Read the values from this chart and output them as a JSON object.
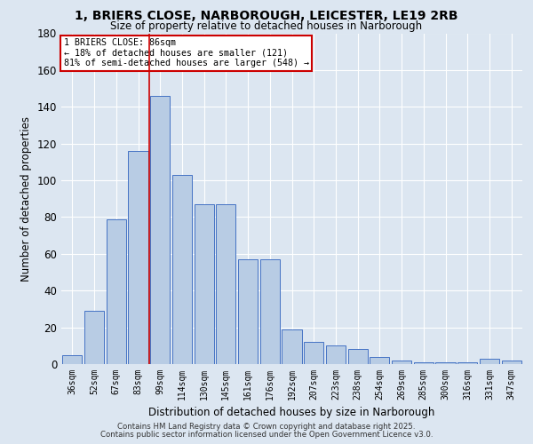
{
  "title": "1, BRIERS CLOSE, NARBOROUGH, LEICESTER, LE19 2RB",
  "subtitle": "Size of property relative to detached houses in Narborough",
  "xlabel": "Distribution of detached houses by size in Narborough",
  "ylabel": "Number of detached properties",
  "categories": [
    "36sqm",
    "52sqm",
    "67sqm",
    "83sqm",
    "99sqm",
    "114sqm",
    "130sqm",
    "145sqm",
    "161sqm",
    "176sqm",
    "192sqm",
    "207sqm",
    "223sqm",
    "238sqm",
    "254sqm",
    "269sqm",
    "285sqm",
    "300sqm",
    "316sqm",
    "331sqm",
    "347sqm"
  ],
  "values": [
    5,
    29,
    79,
    116,
    146,
    103,
    87,
    87,
    57,
    57,
    19,
    12,
    10,
    8,
    4,
    2,
    1,
    1,
    1,
    3,
    2
  ],
  "bar_color": "#b8cce4",
  "bar_edge_color": "#4472c4",
  "background_color": "#dce6f1",
  "plot_bg_color": "#dce6f1",
  "grid_color": "#ffffff",
  "redline_x": 3.5,
  "annotation_title": "1 BRIERS CLOSE: 86sqm",
  "annotation_line1": "← 18% of detached houses are smaller (121)",
  "annotation_line2": "81% of semi-detached houses are larger (548) →",
  "annotation_box_color": "#ffffff",
  "annotation_edge_color": "#cc0000",
  "redline_color": "#cc0000",
  "ylim": [
    0,
    180
  ],
  "yticks": [
    0,
    20,
    40,
    60,
    80,
    100,
    120,
    140,
    160,
    180
  ],
  "footer1": "Contains HM Land Registry data © Crown copyright and database right 2025.",
  "footer2": "Contains public sector information licensed under the Open Government Licence v3.0."
}
